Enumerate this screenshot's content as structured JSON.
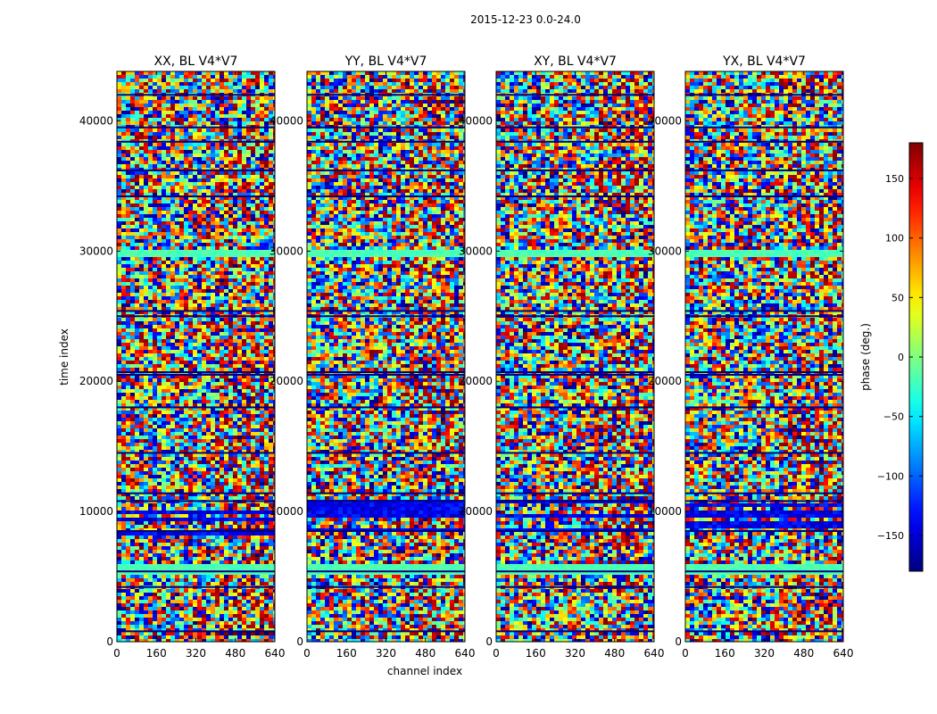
{
  "figure_title": "2015-12-23 0.0-24.0",
  "chart_data": {
    "type": "heatmap",
    "suptitle": "2015-12-23 0.0-24.0",
    "panels": [
      {
        "title": "XX, BL V4*V7"
      },
      {
        "title": "YY, BL V4*V7"
      },
      {
        "title": "XY, BL V4*V7"
      },
      {
        "title": "YX, BL V4*V7"
      }
    ],
    "xlabel": "channel index",
    "ylabel": "time index",
    "xlim": [
      0,
      640
    ],
    "ylim": [
      0,
      43800
    ],
    "xticks": [
      0,
      160,
      320,
      480,
      640
    ],
    "xtick_labels": [
      "0",
      "160",
      "320",
      "480",
      "640"
    ],
    "yticks": [
      0,
      10000,
      20000,
      30000,
      40000
    ],
    "ytick_labels": [
      "0",
      "10000",
      "20000",
      "30000",
      "40000"
    ],
    "colorbar": {
      "label": "phase (deg.)",
      "range": [
        -180,
        180
      ],
      "ticks": [
        150,
        100,
        50,
        0,
        -50,
        -100,
        -150
      ],
      "tick_labels": [
        "150",
        "100",
        "50",
        "0",
        "−50",
        "−100",
        "−150"
      ],
      "colormap": "jet"
    },
    "gap_rows_time_index": [
      800,
      4200,
      5400,
      8500,
      10800,
      11400,
      14500,
      18000,
      20500,
      20700,
      25000,
      25400,
      34200,
      36200,
      38400,
      39500,
      42000
    ],
    "flat_bands_time_index": [
      [
        5400,
        6000
      ],
      [
        29800,
        30300
      ]
    ],
    "fringe_region_channels": [
      380,
      640
    ]
  }
}
